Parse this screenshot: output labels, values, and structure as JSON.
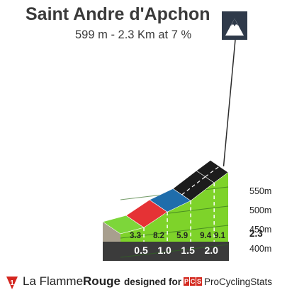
{
  "header": {
    "title": "Saint Andre d'Apchon",
    "subtitle": "599 m - 2.3 Km at 7 %"
  },
  "icons": {
    "summit": "mountain-icon",
    "brand": "flamme-rouge-icon",
    "pcs": "pcs-logo"
  },
  "footer": {
    "brand_light": "La Flamme",
    "brand_bold": "Rouge",
    "designed_by": "designed for",
    "pcs_name": "ProCyclingStats",
    "pcs_letters": [
      "P",
      "C",
      "S"
    ]
  },
  "chart_data": {
    "type": "area",
    "title": "Saint Andre d'Apchon",
    "xlabel": "",
    "ylabel": "",
    "ylim": [
      340,
      600
    ],
    "y_ticks": [
      400,
      450,
      500,
      550
    ],
    "y_tick_labels": [
      "400m",
      "450m",
      "500m",
      "550m"
    ],
    "km_marks": [
      0.5,
      1.0,
      1.5,
      2.0
    ],
    "km_labels": [
      "0.5",
      "1.0",
      "1.5",
      "2.0"
    ],
    "total_km": 2.3,
    "total_km_label": "2.3",
    "segments": [
      {
        "from_km": 0.0,
        "to_km": 0.5,
        "gradient": 3.3,
        "label": "3.3",
        "color": "#7dd63a"
      },
      {
        "from_km": 0.5,
        "to_km": 1.0,
        "gradient": 8.2,
        "label": "8.2",
        "color": "#e53235"
      },
      {
        "from_km": 1.0,
        "to_km": 1.5,
        "gradient": 5.9,
        "label": "5.9",
        "color": "#1f6dab"
      },
      {
        "from_km": 1.5,
        "to_km": 2.0,
        "gradient": 9.4,
        "label": "9.4",
        "color": "#1c1c1c"
      },
      {
        "from_km": 2.0,
        "to_km": 2.3,
        "gradient": 9.1,
        "label": "9.1",
        "color": "#1c1c1c"
      }
    ],
    "elevation_start_m": 439,
    "elevation_end_m": 599,
    "colors": {
      "profile_green": "#7ed32a",
      "side_wall": "#a89f8e",
      "base_strip": "#3b3b3b",
      "grid": "#2f6b1e"
    }
  }
}
